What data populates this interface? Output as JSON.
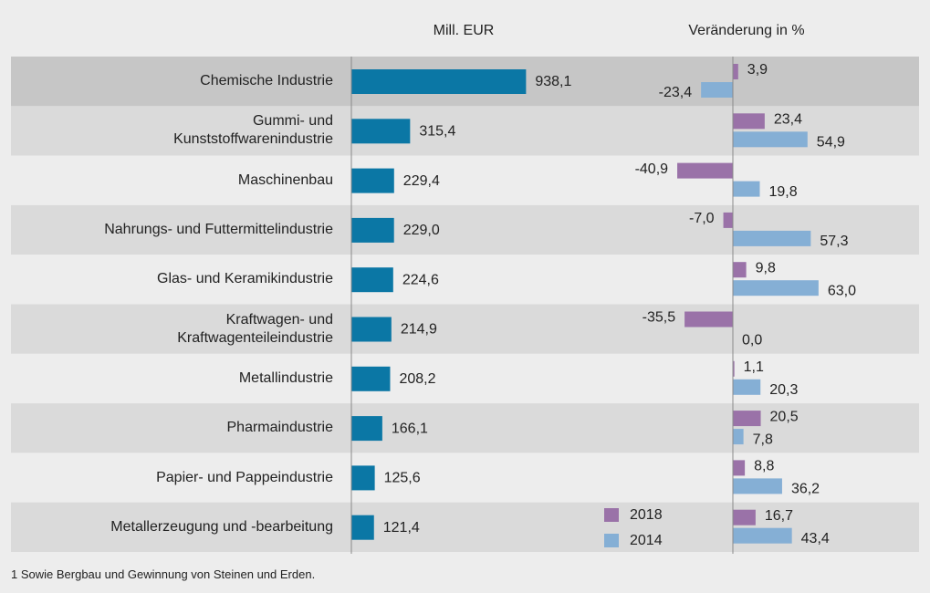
{
  "chart_data": [
    {
      "type": "bar",
      "orientation": "horizontal",
      "title": "Mill. EUR",
      "categories": [
        "Chemische Industrie",
        "Gummi- und\nKunststoffwarenindustrie",
        "Maschinenbau",
        "Nahrungs- und Futtermittelindustrie",
        "Glas- und Keramikindustrie",
        "Kraftwagen- und\nKraftwagenteileindustrie",
        "Metallindustrie",
        "Pharmaindustrie",
        "Papier- und Pappeindustrie",
        "Metallerzeugung und -bearbeitung"
      ],
      "values": [
        938.1,
        315.4,
        229.4,
        229.0,
        224.6,
        214.9,
        208.2,
        166.1,
        125.6,
        121.4
      ],
      "value_labels": [
        "938,1",
        "315,4",
        "229,4",
        "229,0",
        "224,6",
        "214,9",
        "208,2",
        "166,1",
        "125,6",
        "121,4"
      ],
      "color": "#0b77a5",
      "xlim": [
        0,
        1000
      ]
    },
    {
      "type": "grouped-bar",
      "orientation": "horizontal",
      "title": "Veränderung in %",
      "series": [
        {
          "name": "2018",
          "color": "#9a72a8",
          "values": [
            3.9,
            23.4,
            -40.9,
            -7.0,
            9.8,
            -35.5,
            1.1,
            20.5,
            8.8,
            16.7
          ],
          "value_labels": [
            "3,9",
            "23,4",
            "-40,9",
            "-7,0",
            "9,8",
            "-35,5",
            "1,1",
            "20,5",
            "8,8",
            "16,7"
          ]
        },
        {
          "name": "2014",
          "color": "#85afd5",
          "values": [
            -23.4,
            54.9,
            19.8,
            57.3,
            63.0,
            0.0,
            20.3,
            7.8,
            36.2,
            43.4
          ],
          "value_labels": [
            "-23,4",
            "54,9",
            "19,8",
            "57,3",
            "63,0",
            "0,0",
            "20,3",
            "7,8",
            "36,2",
            "43,4"
          ]
        }
      ],
      "xlim": [
        -100,
        100
      ],
      "legend": "bottom-left"
    }
  ],
  "footnote": "1 Sowie Bergbau und Gewinnung von Steinen und Erden."
}
